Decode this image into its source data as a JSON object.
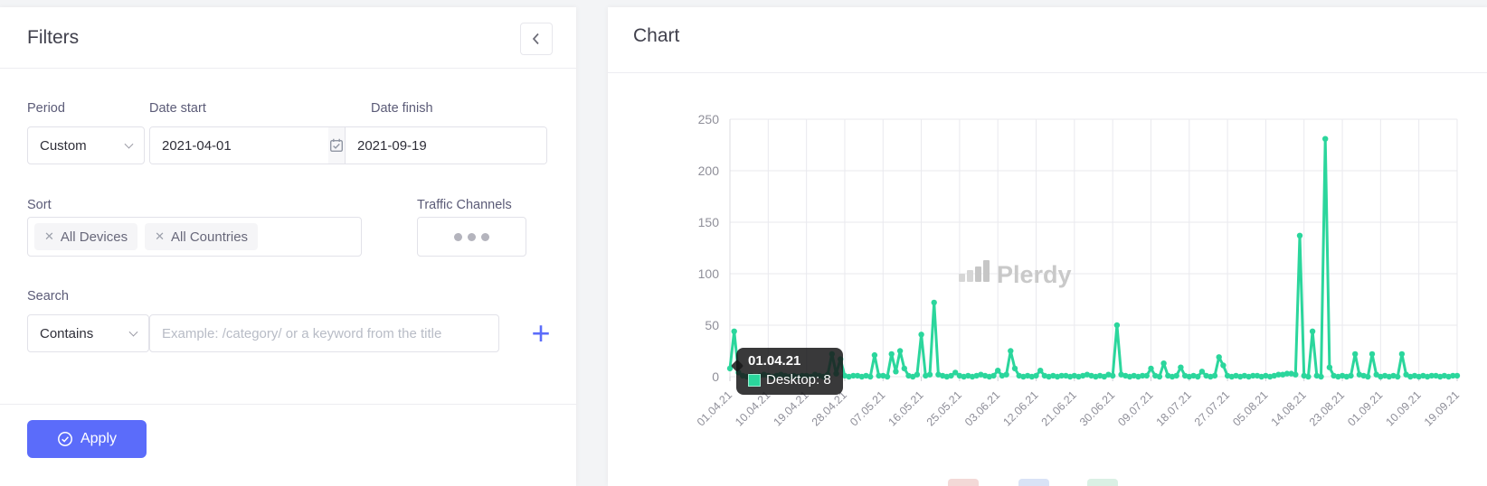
{
  "filters": {
    "title": "Filters",
    "period": {
      "label": "Period",
      "value": "Custom"
    },
    "date_start": {
      "label": "Date start",
      "value": "2021-04-01"
    },
    "date_finish": {
      "label": "Date finish",
      "value": "2021-09-19"
    },
    "sort": {
      "label": "Sort",
      "tags": [
        "All Devices",
        "All Countries"
      ]
    },
    "traffic_channels": {
      "label": "Traffic Channels"
    },
    "search": {
      "label": "Search",
      "operator": "Contains",
      "placeholder": "Example: /category/ or a keyword from the title"
    },
    "apply_label": "Apply"
  },
  "chart_panel": {
    "title": "Chart",
    "watermark": "Plerdy",
    "tooltip": {
      "date": "01.04.21",
      "label": "Desktop: 8",
      "swatch_color": "#2bd69c"
    },
    "legend_stub_colors": [
      "#f3d9d7",
      "#d9e3f6",
      "#daf0e4"
    ]
  },
  "icons": {
    "close": "✕",
    "plus": "+"
  },
  "colors": {
    "accent": "#5b6cfa",
    "line": "#2bd69c",
    "grid": "#e9e9ee",
    "axis_text": "#8f8f99",
    "tooltip_bg": "#18181a",
    "watermark": "#c9c9c9"
  },
  "chart_data": {
    "type": "line",
    "title": "Chart",
    "xlabel": "",
    "ylabel": "",
    "x_start": "01.04.21",
    "x_end": "19.09.21",
    "x_tick_labels": [
      "01.04.21",
      "10.04.21",
      "19.04.21",
      "28.04.21",
      "07.05.21",
      "16.05.21",
      "25.05.21",
      "03.06.21",
      "12.06.21",
      "21.06.21",
      "30.06.21",
      "09.07.21",
      "18.07.21",
      "27.07.21",
      "05.08.21",
      "14.08.21",
      "23.08.21",
      "01.09.21",
      "10.09.21",
      "19.09.21"
    ],
    "tick_every": 9,
    "ylim": [
      0,
      250
    ],
    "y_ticks": [
      0,
      50,
      100,
      150,
      200,
      250
    ],
    "grid": true,
    "legend_position": "bottom",
    "series": [
      {
        "name": "Desktop",
        "color": "#2bd69c",
        "values": [
          8,
          44,
          4,
          1,
          0,
          1,
          0,
          1,
          2,
          1,
          0,
          1,
          2,
          1,
          0,
          1,
          0,
          1,
          1,
          0,
          2,
          1,
          0,
          2,
          22,
          3,
          17,
          1,
          0,
          1,
          1,
          0,
          1,
          0,
          21,
          1,
          1,
          0,
          22,
          5,
          25,
          8,
          1,
          0,
          2,
          41,
          1,
          2,
          72,
          2,
          1,
          0,
          1,
          4,
          1,
          0,
          1,
          0,
          1,
          2,
          1,
          0,
          1,
          6,
          1,
          2,
          25,
          8,
          1,
          0,
          1,
          0,
          1,
          6,
          1,
          0,
          1,
          0,
          1,
          1,
          0,
          1,
          0,
          1,
          2,
          1,
          0,
          1,
          0,
          2,
          1,
          50,
          2,
          1,
          0,
          1,
          0,
          1,
          1,
          8,
          1,
          0,
          13,
          1,
          0,
          1,
          9,
          1,
          0,
          1,
          0,
          5,
          1,
          0,
          1,
          19,
          11,
          1,
          0,
          1,
          0,
          1,
          0,
          1,
          1,
          0,
          1,
          0,
          1,
          2,
          2,
          3,
          3,
          2,
          137,
          1,
          0,
          44,
          1,
          0,
          231,
          9,
          1,
          0,
          1,
          0,
          1,
          22,
          2,
          1,
          0,
          22,
          2,
          0,
          1,
          0,
          1,
          0,
          22,
          2,
          0,
          1,
          0,
          1,
          0,
          1,
          1,
          0,
          1,
          0,
          1,
          1
        ]
      }
    ]
  }
}
